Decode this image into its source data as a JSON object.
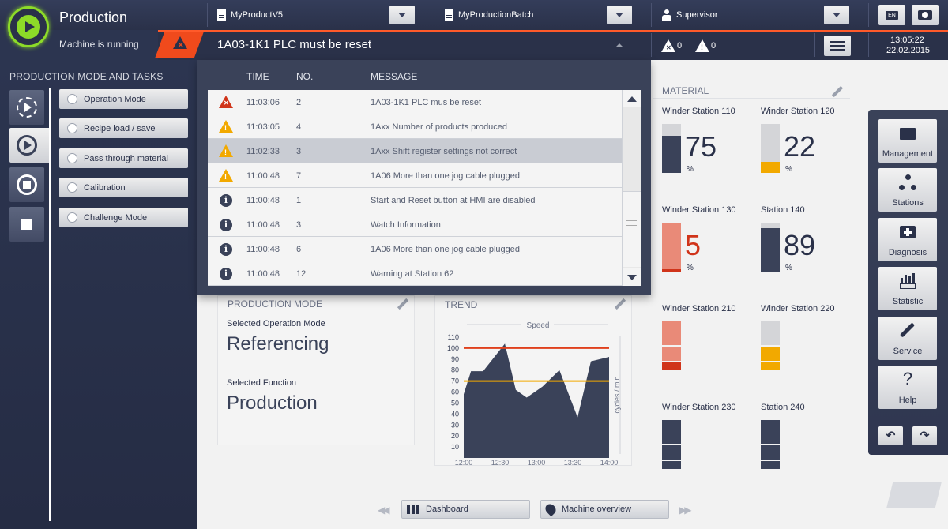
{
  "header": {
    "title": "Production",
    "status": "Machine is running",
    "product": "MyProductV5",
    "batch": "MyProductionBatch",
    "user": "Supervisor",
    "lang": "EN"
  },
  "alarm_bar": {
    "message": "1A03-1K1 PLC must be reset",
    "error_count": "0",
    "warning_count": "0",
    "time": "13:05:22",
    "date": "22.02.2015"
  },
  "left_panel": {
    "heading": "PRODUCTION MODE AND TASKS",
    "tasks": [
      "Operation Mode",
      "Recipe load / save",
      "Pass through material",
      "Calibration",
      "Challenge Mode"
    ]
  },
  "alarm_list": {
    "col_time": "TIME",
    "col_no": "NO.",
    "col_message": "MESSAGE",
    "rows": [
      {
        "type": "error",
        "time": "11:03:06",
        "no": "2",
        "message": "1A03-1K1 PLC mus be reset"
      },
      {
        "type": "warning",
        "time": "11:03:05",
        "no": "4",
        "message": "1Axx Number of products produced"
      },
      {
        "type": "warning",
        "time": "11:02:33",
        "no": "3",
        "message": "1Axx Shift register settings not correct"
      },
      {
        "type": "warning",
        "time": "11:00:48",
        "no": "7",
        "message": "1A06 More than one jog cable plugged"
      },
      {
        "type": "info",
        "time": "11:00:48",
        "no": "1",
        "message": "Start and Reset button at HMI are disabled"
      },
      {
        "type": "info",
        "time": "11:00:48",
        "no": "3",
        "message": "Watch Information"
      },
      {
        "type": "info",
        "time": "11:00:48",
        "no": "6",
        "message": "1A06 More than one jog cable plugged"
      },
      {
        "type": "info",
        "time": "11:00:48",
        "no": "12",
        "message": "Warning at Station 62"
      }
    ]
  },
  "production_mode": {
    "heading": "PRODUCTION MODE",
    "op_label": "Selected Operation Mode",
    "op_value": "Referencing",
    "fn_label": "Selected Function",
    "fn_value": "Production"
  },
  "trend": {
    "heading": "TREND",
    "chart_data": {
      "type": "area",
      "title": "Speed",
      "ylabel": "cycles / min",
      "ylim": [
        0,
        110
      ],
      "yticks": [
        10,
        20,
        30,
        40,
        50,
        60,
        70,
        80,
        90,
        100,
        110
      ],
      "xticks": [
        "12:00",
        "12:30",
        "13:00",
        "13:30",
        "14:00"
      ],
      "upper_limit": 100,
      "lower_limit": 70,
      "limit_colors": {
        "upper": "#e0401c",
        "lower": "#f2a900"
      },
      "fill_color": "#3a4259",
      "x": [
        "12:00",
        "12:06",
        "12:16",
        "12:34",
        "12:43",
        "12:52",
        "13:05",
        "13:19",
        "13:34",
        "13:45",
        "14:00"
      ],
      "values": [
        58,
        79,
        79,
        104,
        62,
        55,
        65,
        80,
        37,
        88,
        92
      ]
    }
  },
  "material": {
    "heading": "MATERIAL",
    "stations": [
      {
        "name": "Winder Station 110",
        "kind": "level",
        "value": 75,
        "show_value": "75",
        "color": "#3a4259"
      },
      {
        "name": "Winder Station 120",
        "kind": "level",
        "value": 22,
        "show_value": "22",
        "color": "#f2a900"
      },
      {
        "name": "Winder Station 130",
        "kind": "level",
        "value": 5,
        "show_value": "5",
        "color": "#e98a78"
      },
      {
        "name": "Station 140",
        "kind": "level",
        "value": 89,
        "show_value": "89",
        "color": "#3a4259"
      },
      {
        "name": "Winder Station 210",
        "kind": "segments",
        "color": "#e98a78"
      },
      {
        "name": "Winder Station 220",
        "kind": "segments",
        "color": "#f2a900"
      },
      {
        "name": "Winder Station 230",
        "kind": "segments",
        "color": "#3a4259"
      },
      {
        "name": "Station 240",
        "kind": "segments",
        "color": "#3a4259"
      }
    ]
  },
  "nav": {
    "items": [
      "Management",
      "Stations",
      "Diagnosis",
      "Statistic",
      "Service",
      "Help"
    ]
  },
  "bottom": {
    "dashboard": "Dashboard",
    "overview": "Machine overview"
  },
  "colors": {
    "accent": "#8ddb28",
    "alarm": "#f04a1c",
    "dark": "#2a3149",
    "warning": "#f2a900"
  }
}
